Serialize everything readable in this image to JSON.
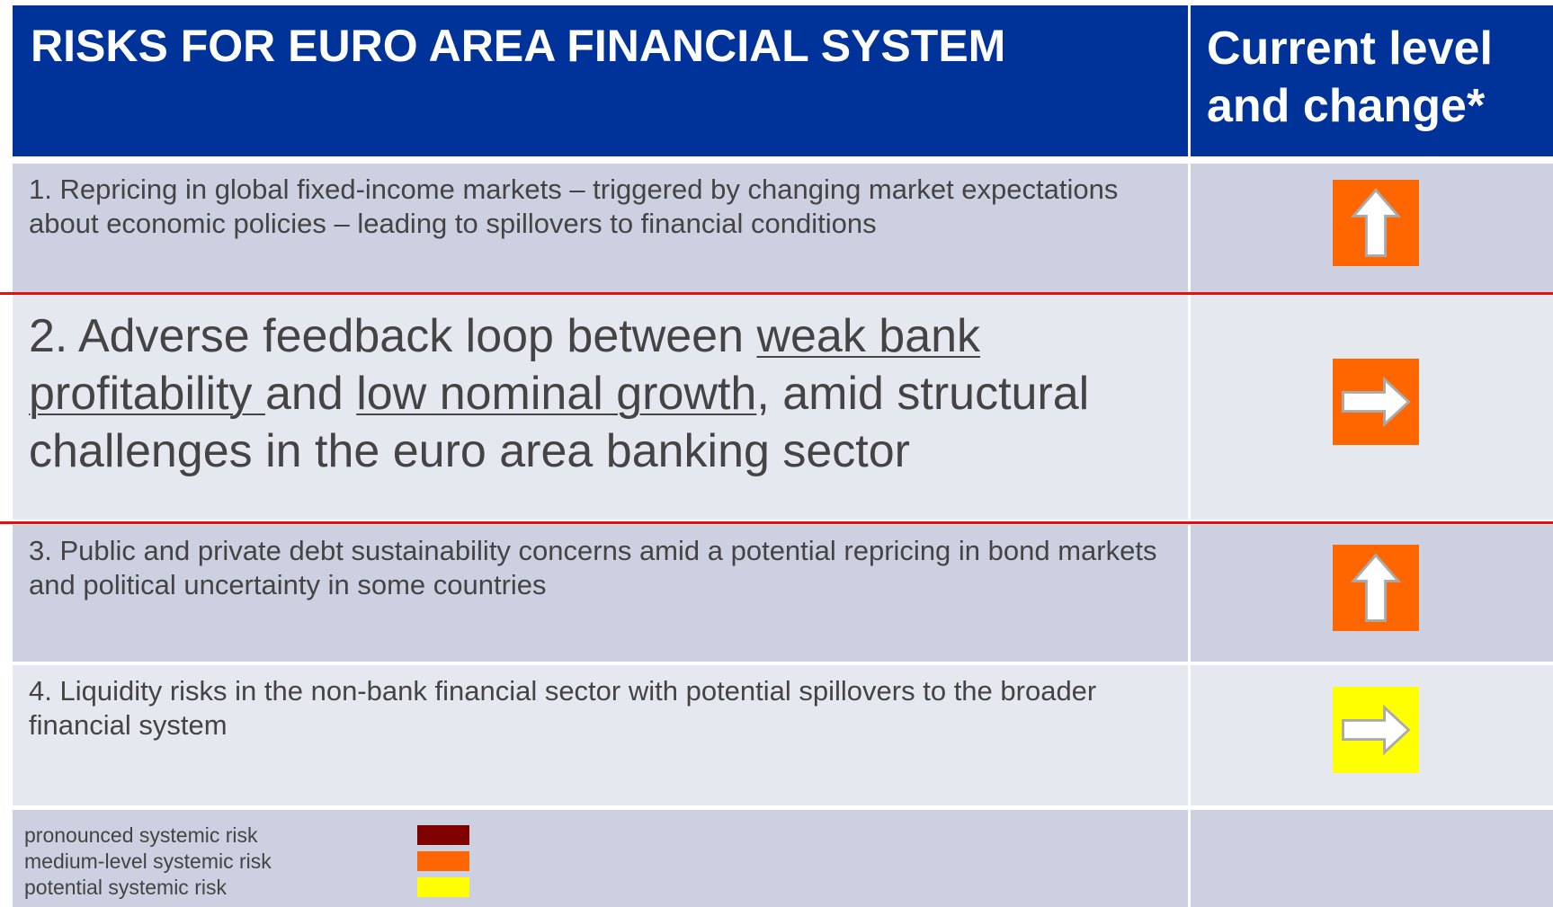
{
  "header": {
    "title": "RISKS FOR EURO AREA FINANCIAL SYSTEM",
    "column": "Current level and change*"
  },
  "rows": [
    {
      "text": "1. Repricing in global fixed-income markets – triggered by changing market expectations about economic policies – leading to spillovers to financial conditions",
      "level_color": "#ff6600",
      "arrow": "up"
    },
    {
      "parts": [
        {
          "text": "2. Adverse feedback loop between "
        },
        {
          "text": "weak bank profitability ",
          "underline": true
        },
        {
          "text": "and "
        },
        {
          "text": "low nominal growth",
          "underline": true
        },
        {
          "text": ", amid structural challenges in the euro area banking sector"
        }
      ],
      "level_color": "#ff6600",
      "arrow": "right",
      "highlighted": true
    },
    {
      "text": "3. Public and private debt sustainability concerns amid a potential repricing in bond markets and political uncertainty in some countries",
      "level_color": "#ff6600",
      "arrow": "up"
    },
    {
      "text": "4. Liquidity risks in the non-bank financial sector with potential spillovers to the broader financial system",
      "level_color": "#ffff00",
      "arrow": "right"
    }
  ],
  "legend": [
    {
      "label": "pronounced systemic risk",
      "color": "#800000"
    },
    {
      "label": "medium-level systemic risk",
      "color": "#ff6600"
    },
    {
      "label": "potential systemic risk",
      "color": "#ffff00"
    }
  ]
}
